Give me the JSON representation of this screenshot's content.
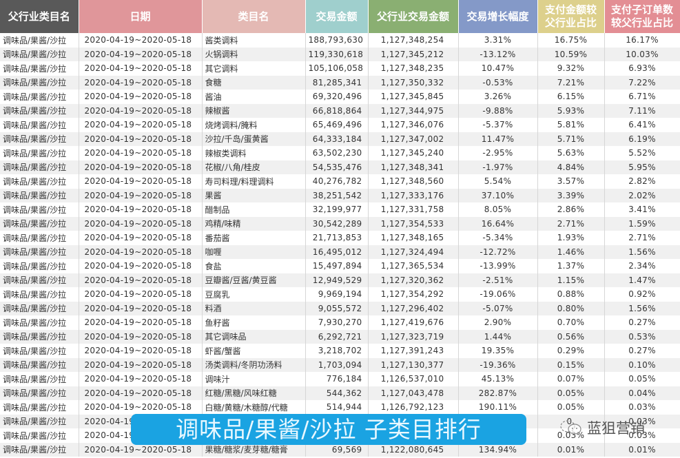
{
  "table": {
    "headers": [
      {
        "label": "父行业类目名",
        "color": "#595959"
      },
      {
        "label": "日期",
        "color": "#e0969a"
      },
      {
        "label": "类目名",
        "color": "#e4b9b4"
      },
      {
        "label": "交易金额",
        "color": "#9fcfcd"
      },
      {
        "label": "父行业交易金额",
        "color": "#8aaf72"
      },
      {
        "label": "交易增长幅度",
        "color": "#8499c8"
      },
      {
        "label": "支付金额较父行业占比",
        "line1": "支付金额较",
        "line2": "父行业占比",
        "color": "#ddd08c"
      },
      {
        "label": "支付子订单数较父行业占比",
        "line1": "支付子订单数",
        "line2": "较父行业占比",
        "color": "#e38e94"
      }
    ],
    "rows": [
      {
        "parent": "调味品/果酱/沙拉",
        "date": "2020-04-19~2020-05-18",
        "category": "酱类调料",
        "amount": "188,793,630",
        "parent_amount": "1,127,348,254",
        "growth": "3.31%",
        "pay_share": "16.75%",
        "order_share": "16.17%"
      },
      {
        "parent": "调味品/果酱/沙拉",
        "date": "2020-04-19~2020-05-18",
        "category": "火锅调料",
        "amount": "119,330,618",
        "parent_amount": "1,127,345,212",
        "growth": "-13.12%",
        "pay_share": "10.59%",
        "order_share": "10.03%"
      },
      {
        "parent": "调味品/果酱/沙拉",
        "date": "2020-04-19~2020-05-18",
        "category": "其它调料",
        "amount": "105,106,058",
        "parent_amount": "1,127,348,235",
        "growth": "10.47%",
        "pay_share": "9.32%",
        "order_share": "6.93%"
      },
      {
        "parent": "调味品/果酱/沙拉",
        "date": "2020-04-19~2020-05-18",
        "category": "食糖",
        "amount": "81,285,341",
        "parent_amount": "1,127,350,332",
        "growth": "-0.53%",
        "pay_share": "7.21%",
        "order_share": "7.22%"
      },
      {
        "parent": "调味品/果酱/沙拉",
        "date": "2020-04-19~2020-05-18",
        "category": "酱油",
        "amount": "69,320,496",
        "parent_amount": "1,127,345,845",
        "growth": "3.26%",
        "pay_share": "6.15%",
        "order_share": "6.71%"
      },
      {
        "parent": "调味品/果酱/沙拉",
        "date": "2020-04-19~2020-05-18",
        "category": "辣椒酱",
        "amount": "66,818,864",
        "parent_amount": "1,127,344,975",
        "growth": "-9.88%",
        "pay_share": "5.93%",
        "order_share": "7.11%"
      },
      {
        "parent": "调味品/果酱/沙拉",
        "date": "2020-04-19~2020-05-18",
        "category": "烧烤调料/腌料",
        "amount": "65,469,496",
        "parent_amount": "1,127,346,076",
        "growth": "-5.37%",
        "pay_share": "5.81%",
        "order_share": "6.41%"
      },
      {
        "parent": "调味品/果酱/沙拉",
        "date": "2020-04-19~2020-05-18",
        "category": "沙拉/千岛/蛋黄酱",
        "amount": "64,333,184",
        "parent_amount": "1,127,347,002",
        "growth": "11.47%",
        "pay_share": "5.71%",
        "order_share": "6.19%"
      },
      {
        "parent": "调味品/果酱/沙拉",
        "date": "2020-04-19~2020-05-18",
        "category": "辣椒类调料",
        "amount": "63,502,230",
        "parent_amount": "1,127,345,240",
        "growth": "-2.95%",
        "pay_share": "5.63%",
        "order_share": "5.52%"
      },
      {
        "parent": "调味品/果酱/沙拉",
        "date": "2020-04-19~2020-05-18",
        "category": "花椒/八角/桂皮",
        "amount": "54,535,476",
        "parent_amount": "1,127,348,341",
        "growth": "-1.97%",
        "pay_share": "4.84%",
        "order_share": "5.95%"
      },
      {
        "parent": "调味品/果酱/沙拉",
        "date": "2020-04-19~2020-05-18",
        "category": "寿司料理/料理调料",
        "amount": "40,276,782",
        "parent_amount": "1,127,348,560",
        "growth": "5.54%",
        "pay_share": "3.57%",
        "order_share": "2.82%"
      },
      {
        "parent": "调味品/果酱/沙拉",
        "date": "2020-04-19~2020-05-18",
        "category": "果酱",
        "amount": "38,251,542",
        "parent_amount": "1,127,333,176",
        "growth": "37.10%",
        "pay_share": "3.39%",
        "order_share": "2.02%"
      },
      {
        "parent": "调味品/果酱/沙拉",
        "date": "2020-04-19~2020-05-18",
        "category": "醋制品",
        "amount": "32,199,977",
        "parent_amount": "1,127,331,758",
        "growth": "8.05%",
        "pay_share": "2.86%",
        "order_share": "3.41%"
      },
      {
        "parent": "调味品/果酱/沙拉",
        "date": "2020-04-19~2020-05-18",
        "category": "鸡精/味精",
        "amount": "30,542,289",
        "parent_amount": "1,127,354,533",
        "growth": "16.64%",
        "pay_share": "2.71%",
        "order_share": "1.59%"
      },
      {
        "parent": "调味品/果酱/沙拉",
        "date": "2020-04-19~2020-05-18",
        "category": "番茄酱",
        "amount": "21,713,853",
        "parent_amount": "1,127,348,165",
        "growth": "-5.34%",
        "pay_share": "1.93%",
        "order_share": "2.71%"
      },
      {
        "parent": "调味品/果酱/沙拉",
        "date": "2020-04-19~2020-05-18",
        "category": "咖喱",
        "amount": "16,495,012",
        "parent_amount": "1,127,324,494",
        "growth": "-12.72%",
        "pay_share": "1.46%",
        "order_share": "1.56%"
      },
      {
        "parent": "调味品/果酱/沙拉",
        "date": "2020-04-19~2020-05-18",
        "category": "食盐",
        "amount": "15,497,894",
        "parent_amount": "1,127,365,534",
        "growth": "-13.99%",
        "pay_share": "1.37%",
        "order_share": "2.34%"
      },
      {
        "parent": "调味品/果酱/沙拉",
        "date": "2020-04-19~2020-05-18",
        "category": "豆瓣酱/豆酱/黄豆酱",
        "amount": "12,949,529",
        "parent_amount": "1,127,320,362",
        "growth": "-2.51%",
        "pay_share": "1.15%",
        "order_share": "1.47%"
      },
      {
        "parent": "调味品/果酱/沙拉",
        "date": "2020-04-19~2020-05-18",
        "category": "豆腐乳",
        "amount": "9,969,194",
        "parent_amount": "1,127,354,292",
        "growth": "-19.06%",
        "pay_share": "0.88%",
        "order_share": "0.92%"
      },
      {
        "parent": "调味品/果酱/沙拉",
        "date": "2020-04-19~2020-05-18",
        "category": "料酒",
        "amount": "9,055,572",
        "parent_amount": "1,127,296,402",
        "growth": "-5.07%",
        "pay_share": "0.80%",
        "order_share": "1.56%"
      },
      {
        "parent": "调味品/果酱/沙拉",
        "date": "2020-04-19~2020-05-18",
        "category": "鱼籽酱",
        "amount": "7,930,270",
        "parent_amount": "1,127,419,676",
        "growth": "2.90%",
        "pay_share": "0.70%",
        "order_share": "0.27%"
      },
      {
        "parent": "调味品/果酱/沙拉",
        "date": "2020-04-19~2020-05-18",
        "category": "其它调味品",
        "amount": "6,292,721",
        "parent_amount": "1,127,323,719",
        "growth": "1.44%",
        "pay_share": "0.56%",
        "order_share": "0.53%"
      },
      {
        "parent": "调味品/果酱/沙拉",
        "date": "2020-04-19~2020-05-18",
        "category": "虾酱/蟹酱",
        "amount": "3,218,702",
        "parent_amount": "1,127,391,243",
        "growth": "19.35%",
        "pay_share": "0.29%",
        "order_share": "0.27%"
      },
      {
        "parent": "调味品/果酱/沙拉",
        "date": "2020-04-19~2020-05-18",
        "category": "汤类调料/冬阴功汤料",
        "amount": "1,703,094",
        "parent_amount": "1,127,130,377",
        "growth": "-19.36%",
        "pay_share": "0.15%",
        "order_share": "0.10%"
      },
      {
        "parent": "调味品/果酱/沙拉",
        "date": "2020-04-19~2020-05-18",
        "category": "调味汁",
        "amount": "776,184",
        "parent_amount": "1,126,537,010",
        "growth": "45.13%",
        "pay_share": "0.07%",
        "order_share": "0.05%"
      },
      {
        "parent": "调味品/果酱/沙拉",
        "date": "2020-04-19~2020-05-18",
        "category": "红糖/黑糖/风味红糖",
        "amount": "544,362",
        "parent_amount": "1,127,043,478",
        "growth": "282.87%",
        "pay_share": "0.05%",
        "order_share": "0.04%"
      },
      {
        "parent": "调味品/果酱/沙拉",
        "date": "2020-04-19~2020-05-18",
        "category": "白糖/黄糖/木糖醇/代糖",
        "amount": "514,944",
        "parent_amount": "1,126,792,123",
        "growth": "190.11%",
        "pay_share": "0.05%",
        "order_share": "0.03%"
      },
      {
        "parent": "调味品/果酱/沙拉",
        "date": "2020-04-19",
        "category": "",
        "amount": "",
        "parent_amount": "",
        "growth": "",
        "pay_share": "0.",
        "order_share": "0.03%"
      },
      {
        "parent": "调味品/果酱/沙拉",
        "date": "2020-04-19",
        "category": "",
        "amount": "",
        "parent_amount": "",
        "growth": "",
        "pay_share": "0.03%",
        "order_share": "0.03%"
      },
      {
        "parent": "调味品/果酱/沙拉",
        "date": "2020-04-19~2020-05-18",
        "category": "果糖/糖浆/麦芽糖/糖膏",
        "amount": "69,569",
        "parent_amount": "1,122,080,645",
        "growth": "134.94%",
        "pay_share": "0.01%",
        "order_share": "0.01%"
      }
    ]
  },
  "banner": {
    "text": "调味品/果酱/沙拉  子类目排行",
    "color": "#1aa3e2"
  },
  "watermark": {
    "text": "蓝狙营销",
    "icon": "wechat-icon"
  }
}
